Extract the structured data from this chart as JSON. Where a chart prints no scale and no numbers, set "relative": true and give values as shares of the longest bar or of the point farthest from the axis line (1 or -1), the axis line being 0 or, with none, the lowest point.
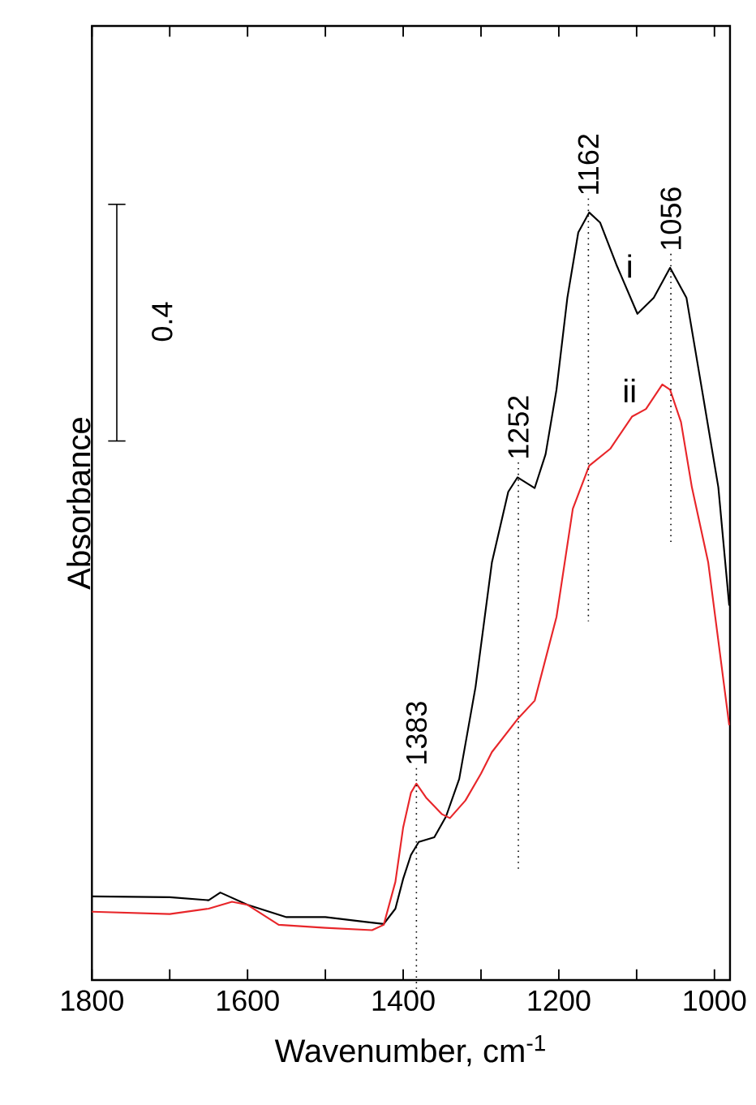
{
  "chart_data": {
    "type": "line",
    "xlabel": "Wavenumber, cm$^{-1}$",
    "ylabel": "Absorbance",
    "relative": true,
    "marker": "none",
    "line_style": "solid",
    "xlim": [
      1800,
      980
    ],
    "xticks": [
      1800,
      {
        "value": 1700,
        "label": null
      },
      1600,
      {
        "value": 1500,
        "label": null
      },
      1400,
      {
        "value": 1300,
        "label": null
      },
      1200,
      {
        "value": 1100,
        "label": null
      },
      1000
    ],
    "annotations": [
      "0.4"
    ],
    "ref_lines": [
      {
        "axis": "x",
        "value": 1383,
        "label": "1383",
        "line_style": "dotted",
        "color": "#000000"
      },
      {
        "axis": "x",
        "value": 1252,
        "label": "1252",
        "line_style": "dotted",
        "color": "#000000"
      },
      {
        "axis": "x",
        "value": 1162,
        "label": "1162",
        "line_style": "dotted",
        "color": "#000000"
      },
      {
        "axis": "x",
        "value": 1056,
        "label": "1056",
        "line_style": "dotted",
        "color": "#000000"
      }
    ],
    "series": [
      {
        "name": "i",
        "color": "#000000",
        "x": [
          1800,
          1700,
          1650,
          1635,
          1600,
          1550,
          1500,
          1450,
          1425,
          1410,
          1400,
          1390,
          1380,
          1360,
          1345,
          1328,
          1307,
          1286,
          1265,
          1253,
          1231,
          1217,
          1203,
          1189,
          1175,
          1161,
          1147,
          1126,
          1099,
          1078,
          1057,
          1036,
          1015,
          995,
          981
        ],
        "values": [
          0.109,
          0.108,
          0.104,
          0.114,
          0.098,
          0.082,
          0.082,
          0.076,
          0.073,
          0.093,
          0.132,
          0.163,
          0.18,
          0.186,
          0.213,
          0.262,
          0.382,
          0.544,
          0.636,
          0.655,
          0.641,
          0.685,
          0.769,
          0.889,
          0.974,
          1,
          0.987,
          0.932,
          0.868,
          0.889,
          0.928,
          0.889,
          0.763,
          0.642,
          0.488
        ]
      },
      {
        "name": "ii",
        "color": "#e8262a",
        "x": [
          1800,
          1700,
          1650,
          1620,
          1600,
          1560,
          1500,
          1440,
          1425,
          1410,
          1400,
          1390,
          1383,
          1370,
          1350,
          1340,
          1320,
          1300,
          1286,
          1253,
          1231,
          1203,
          1182,
          1161,
          1134,
          1106,
          1088,
          1067,
          1057,
          1043,
          1029,
          1008,
          981
        ],
        "values": [
          0.089,
          0.086,
          0.093,
          0.102,
          0.098,
          0.072,
          0.068,
          0.065,
          0.072,
          0.128,
          0.199,
          0.244,
          0.256,
          0.237,
          0.216,
          0.211,
          0.234,
          0.269,
          0.297,
          0.34,
          0.364,
          0.473,
          0.614,
          0.67,
          0.692,
          0.734,
          0.744,
          0.776,
          0.769,
          0.727,
          0.642,
          0.544,
          0.332
        ]
      }
    ]
  }
}
